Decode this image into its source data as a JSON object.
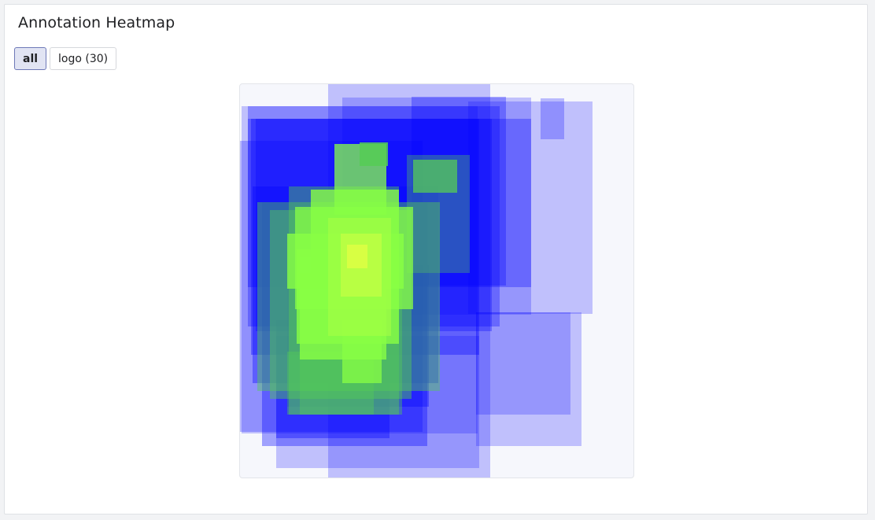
{
  "panel": {
    "title": "Annotation Heatmap"
  },
  "filters": [
    {
      "label": "all",
      "active": true
    },
    {
      "label": "logo (30)",
      "active": false
    }
  ],
  "heatmap": {
    "colors": {
      "low": "#0000ff",
      "mid": "#33cc44",
      "high": "#ffff44",
      "background": "#f6f7fc"
    }
  }
}
